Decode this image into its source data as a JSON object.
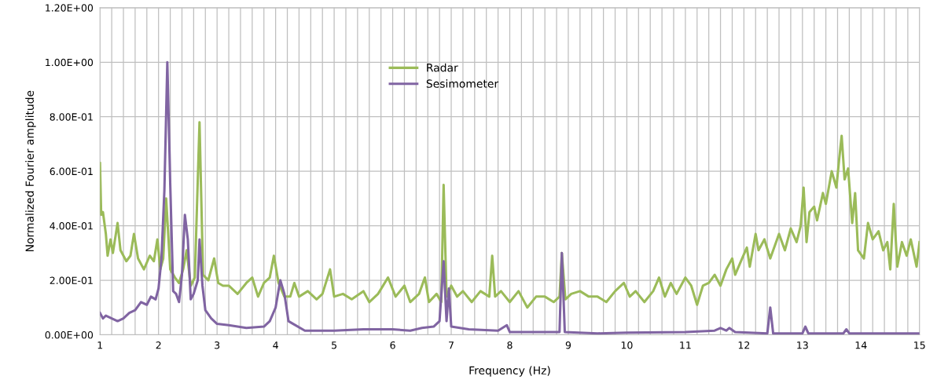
{
  "chart_data": {
    "type": "line",
    "xlabel": "Frequency (Hz)",
    "ylabel": "Normalized Fourier amplitude",
    "xlim": [
      1,
      15
    ],
    "ylim": [
      0,
      1.2
    ],
    "xticks": [
      1,
      {
        "value": 1.2,
        "label": null
      },
      {
        "value": 1.4,
        "label": null
      },
      {
        "value": 1.6,
        "label": null
      },
      {
        "value": 1.8,
        "label": null
      },
      2,
      {
        "value": 2.2,
        "label": null
      },
      {
        "value": 2.4,
        "label": null
      },
      {
        "value": 2.6,
        "label": null
      },
      {
        "value": 2.8,
        "label": null
      },
      3,
      {
        "value": 3.2,
        "label": null
      },
      {
        "value": 3.4,
        "label": null
      },
      {
        "value": 3.6,
        "label": null
      },
      {
        "value": 3.8,
        "label": null
      },
      4,
      {
        "value": 4.2,
        "label": null
      },
      {
        "value": 4.4,
        "label": null
      },
      {
        "value": 4.6,
        "label": null
      },
      {
        "value": 4.8,
        "label": null
      },
      5,
      {
        "value": 5.2,
        "label": null
      },
      {
        "value": 5.4,
        "label": null
      },
      {
        "value": 5.6,
        "label": null
      },
      {
        "value": 5.8,
        "label": null
      },
      6,
      {
        "value": 6.2,
        "label": null
      },
      {
        "value": 6.4,
        "label": null
      },
      {
        "value": 6.6,
        "label": null
      },
      {
        "value": 6.8,
        "label": null
      },
      7,
      {
        "value": 7.2,
        "label": null
      },
      {
        "value": 7.4,
        "label": null
      },
      {
        "value": 7.6,
        "label": null
      },
      {
        "value": 7.8,
        "label": null
      },
      8,
      {
        "value": 8.2,
        "label": null
      },
      {
        "value": 8.4,
        "label": null
      },
      {
        "value": 8.6,
        "label": null
      },
      {
        "value": 8.8,
        "label": null
      },
      9,
      {
        "value": 9.2,
        "label": null
      },
      {
        "value": 9.4,
        "label": null
      },
      {
        "value": 9.6,
        "label": null
      },
      {
        "value": 9.8,
        "label": null
      },
      10,
      {
        "value": 10.2,
        "label": null
      },
      {
        "value": 10.4,
        "label": null
      },
      {
        "value": 10.6,
        "label": null
      },
      {
        "value": 10.8,
        "label": null
      },
      11,
      {
        "value": 11.2,
        "label": null
      },
      {
        "value": 11.4,
        "label": null
      },
      {
        "value": 11.6,
        "label": null
      },
      {
        "value": 11.8,
        "label": null
      },
      12,
      {
        "value": 12.2,
        "label": null
      },
      {
        "value": 12.4,
        "label": null
      },
      {
        "value": 12.6,
        "label": null
      },
      {
        "value": 12.8,
        "label": null
      },
      13,
      {
        "value": 13.2,
        "label": null
      },
      {
        "value": 13.4,
        "label": null
      },
      {
        "value": 13.6,
        "label": null
      },
      {
        "value": 13.8,
        "label": null
      },
      14,
      {
        "value": 14.2,
        "label": null
      },
      {
        "value": 14.4,
        "label": null
      },
      {
        "value": 14.6,
        "label": null
      },
      {
        "value": 14.8,
        "label": null
      },
      15
    ],
    "yticks": [
      {
        "value": 0,
        "label": "0.00E+00"
      },
      {
        "value": 0.2,
        "label": "2.00E-01"
      },
      {
        "value": 0.4,
        "label": "4.00E-01"
      },
      {
        "value": 0.6,
        "label": "6.00E-01"
      },
      {
        "value": 0.8,
        "label": "8.00E-01"
      },
      {
        "value": 1.0,
        "label": "1.00E+00"
      },
      {
        "value": 1.2,
        "label": "1.20E+00"
      }
    ],
    "grid": true,
    "legend": "top",
    "marker": "none",
    "line_style": "solid",
    "series": [
      {
        "name": "Radar",
        "color": "#9bbb59",
        "x": [
          1,
          1.02,
          1.05,
          1.1,
          1.13,
          1.18,
          1.22,
          1.3,
          1.35,
          1.45,
          1.52,
          1.58,
          1.65,
          1.75,
          1.85,
          1.92,
          1.98,
          2.03,
          2.08,
          2.13,
          2.2,
          2.28,
          2.35,
          2.42,
          2.48,
          2.55,
          2.62,
          2.7,
          2.76,
          2.85,
          2.95,
          3.02,
          3.1,
          3.2,
          3.35,
          3.5,
          3.6,
          3.7,
          3.8,
          3.9,
          3.97,
          4.05,
          4.15,
          4.25,
          4.32,
          4.4,
          4.55,
          4.7,
          4.8,
          4.93,
          5.0,
          5.15,
          5.3,
          5.5,
          5.6,
          5.75,
          5.92,
          6.05,
          6.2,
          6.3,
          6.45,
          6.55,
          6.62,
          6.75,
          6.83,
          6.87,
          6.92,
          7.0,
          7.1,
          7.2,
          7.35,
          7.5,
          7.65,
          7.7,
          7.75,
          7.85,
          8.0,
          8.15,
          8.3,
          8.45,
          8.6,
          8.75,
          8.85,
          8.89,
          8.95,
          9.05,
          9.2,
          9.35,
          9.5,
          9.65,
          9.8,
          9.95,
          10.05,
          10.15,
          10.3,
          10.45,
          10.55,
          10.65,
          10.75,
          10.85,
          11.0,
          11.1,
          11.2,
          11.3,
          11.4,
          11.5,
          11.6,
          11.7,
          11.8,
          11.85,
          11.95,
          12.05,
          12.1,
          12.2,
          12.25,
          12.35,
          12.45,
          12.6,
          12.7,
          12.8,
          12.9,
          12.97,
          13.02,
          13.07,
          13.12,
          13.2,
          13.25,
          13.35,
          13.4,
          13.5,
          13.58,
          13.63,
          13.67,
          13.72,
          13.78,
          13.85,
          13.9,
          13.95,
          14.05,
          14.12,
          14.2,
          14.3,
          14.38,
          14.45,
          14.5,
          14.56,
          14.62,
          14.7,
          14.78,
          14.85,
          14.95,
          15.0
        ],
        "values": [
          0.63,
          0.44,
          0.45,
          0.37,
          0.29,
          0.35,
          0.3,
          0.41,
          0.31,
          0.27,
          0.29,
          0.37,
          0.28,
          0.24,
          0.29,
          0.27,
          0.35,
          0.24,
          0.28,
          0.5,
          0.24,
          0.21,
          0.19,
          0.24,
          0.31,
          0.18,
          0.21,
          0.78,
          0.22,
          0.2,
          0.28,
          0.19,
          0.18,
          0.18,
          0.15,
          0.19,
          0.21,
          0.14,
          0.19,
          0.21,
          0.29,
          0.19,
          0.14,
          0.14,
          0.19,
          0.14,
          0.16,
          0.13,
          0.15,
          0.24,
          0.14,
          0.15,
          0.13,
          0.16,
          0.12,
          0.15,
          0.21,
          0.14,
          0.18,
          0.12,
          0.15,
          0.21,
          0.12,
          0.15,
          0.12,
          0.55,
          0.14,
          0.18,
          0.14,
          0.16,
          0.12,
          0.16,
          0.14,
          0.29,
          0.14,
          0.16,
          0.12,
          0.16,
          0.1,
          0.14,
          0.14,
          0.12,
          0.14,
          0.3,
          0.13,
          0.15,
          0.16,
          0.14,
          0.14,
          0.12,
          0.16,
          0.19,
          0.14,
          0.16,
          0.12,
          0.16,
          0.21,
          0.14,
          0.19,
          0.15,
          0.21,
          0.18,
          0.11,
          0.18,
          0.19,
          0.22,
          0.18,
          0.24,
          0.28,
          0.22,
          0.27,
          0.32,
          0.25,
          0.37,
          0.31,
          0.35,
          0.28,
          0.37,
          0.31,
          0.39,
          0.34,
          0.4,
          0.54,
          0.34,
          0.45,
          0.47,
          0.42,
          0.52,
          0.48,
          0.6,
          0.54,
          0.65,
          0.73,
          0.57,
          0.61,
          0.41,
          0.52,
          0.31,
          0.28,
          0.41,
          0.35,
          0.38,
          0.31,
          0.34,
          0.24,
          0.48,
          0.25,
          0.34,
          0.29,
          0.35,
          0.25,
          0.34
        ]
      },
      {
        "name": "Sesimometer",
        "color": "#8064a2",
        "x": [
          1.0,
          1.05,
          1.1,
          1.2,
          1.3,
          1.4,
          1.5,
          1.6,
          1.7,
          1.8,
          1.87,
          1.95,
          2.0,
          2.05,
          2.1,
          2.15,
          2.2,
          2.25,
          2.3,
          2.35,
          2.4,
          2.45,
          2.5,
          2.55,
          2.6,
          2.67,
          2.7,
          2.75,
          2.8,
          2.9,
          3.0,
          3.2,
          3.5,
          3.8,
          3.9,
          4.0,
          4.08,
          4.15,
          4.22,
          4.3,
          4.5,
          5.0,
          5.5,
          6.0,
          6.3,
          6.5,
          6.7,
          6.8,
          6.87,
          6.92,
          6.96,
          7.0,
          7.3,
          7.8,
          7.95,
          8.0,
          8.5,
          8.85,
          8.89,
          8.94,
          9.5,
          10.0,
          11.0,
          11.5,
          11.6,
          11.7,
          11.75,
          11.85,
          12.4,
          12.45,
          12.5,
          13.0,
          13.05,
          13.1,
          13.7,
          13.75,
          13.8,
          15.0
        ],
        "values": [
          0.08,
          0.06,
          0.07,
          0.06,
          0.05,
          0.06,
          0.08,
          0.09,
          0.12,
          0.11,
          0.14,
          0.13,
          0.17,
          0.28,
          0.53,
          1.0,
          0.55,
          0.16,
          0.15,
          0.12,
          0.22,
          0.44,
          0.35,
          0.13,
          0.15,
          0.2,
          0.35,
          0.18,
          0.09,
          0.06,
          0.04,
          0.035,
          0.025,
          0.03,
          0.05,
          0.1,
          0.2,
          0.15,
          0.05,
          0.04,
          0.015,
          0.015,
          0.02,
          0.02,
          0.015,
          0.025,
          0.03,
          0.05,
          0.27,
          0.05,
          0.17,
          0.03,
          0.02,
          0.015,
          0.035,
          0.01,
          0.01,
          0.01,
          0.3,
          0.01,
          0.005,
          0.008,
          0.01,
          0.015,
          0.025,
          0.015,
          0.025,
          0.01,
          0.005,
          0.1,
          0.005,
          0.005,
          0.03,
          0.005,
          0.005,
          0.02,
          0.005,
          0.005
        ]
      }
    ]
  }
}
